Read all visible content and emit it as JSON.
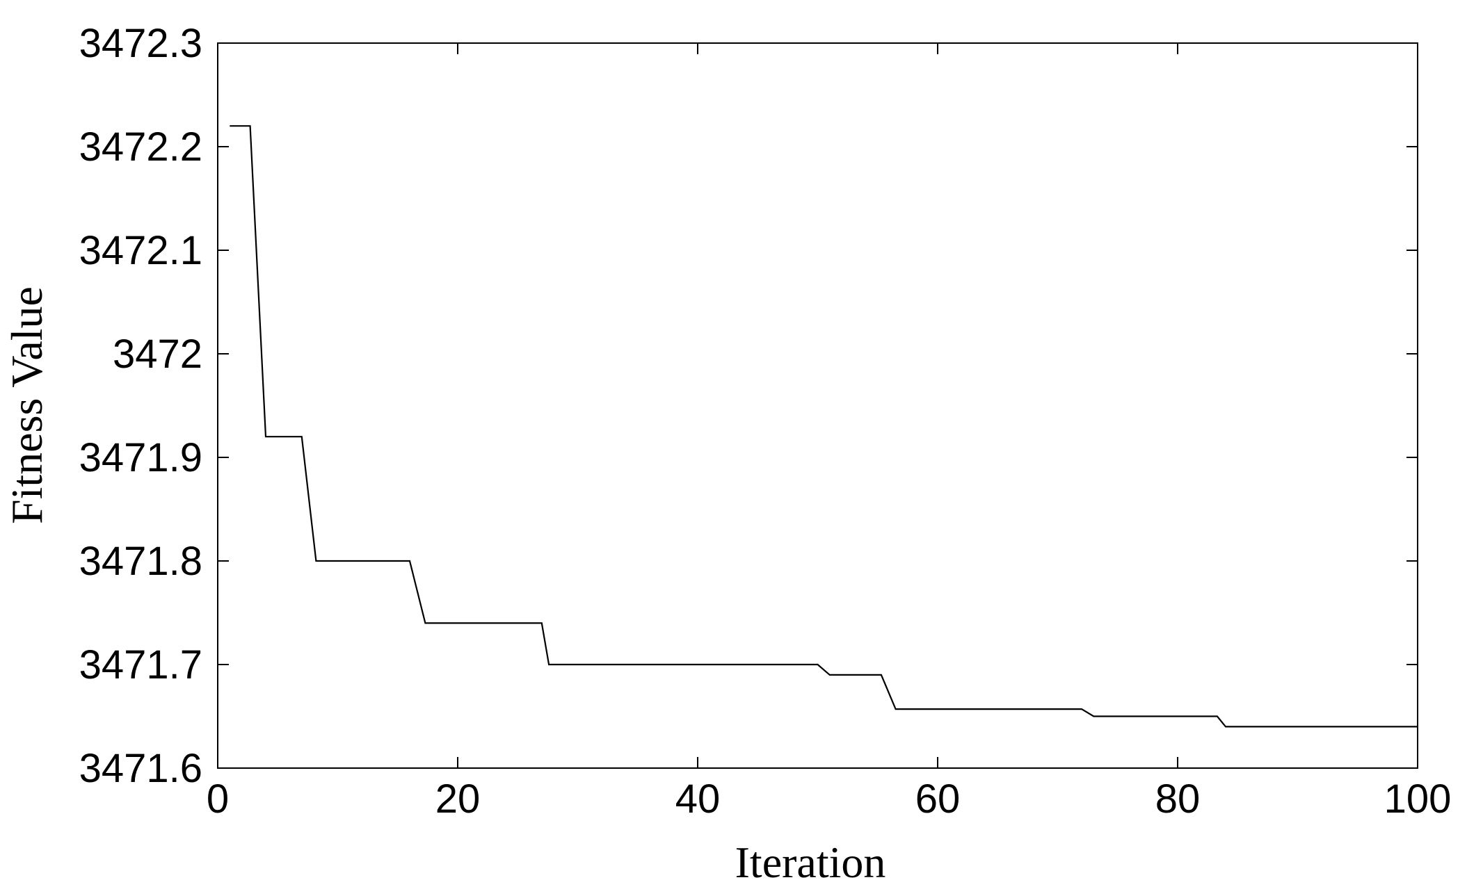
{
  "chart_data": {
    "type": "line",
    "title": "",
    "xlabel": "Iteration",
    "ylabel": "Fitness Value",
    "xlim": [
      0,
      100
    ],
    "ylim": [
      3471.6,
      3472.3
    ],
    "xticks": [
      0,
      20,
      40,
      60,
      80,
      100
    ],
    "xtick_labels": [
      "0",
      "20",
      "40",
      "60",
      "80",
      "100"
    ],
    "yticks": [
      3471.6,
      3471.7,
      3471.8,
      3471.9,
      3472.0,
      3472.1,
      3472.2,
      3472.3
    ],
    "ytick_labels": [
      "3471.6",
      "3471.7",
      "3471.8",
      "3471.9",
      "3472",
      "3472.1",
      "3472.2",
      "3472.3"
    ],
    "grid": false,
    "legend": "none",
    "line_color": "#000000",
    "series": [
      {
        "x": [
          1,
          2.7,
          4,
          7,
          8.2,
          16,
          17.3,
          27,
          27.6,
          50,
          51,
          55.3,
          56.5,
          72,
          73,
          83.3,
          84,
          100
        ],
        "values": [
          3472.22,
          3472.22,
          3471.92,
          3471.92,
          3471.8,
          3471.8,
          3471.74,
          3471.74,
          3471.7,
          3471.7,
          3471.69,
          3471.69,
          3471.657,
          3471.657,
          3471.65,
          3471.65,
          3471.64,
          3471.64
        ]
      }
    ]
  }
}
